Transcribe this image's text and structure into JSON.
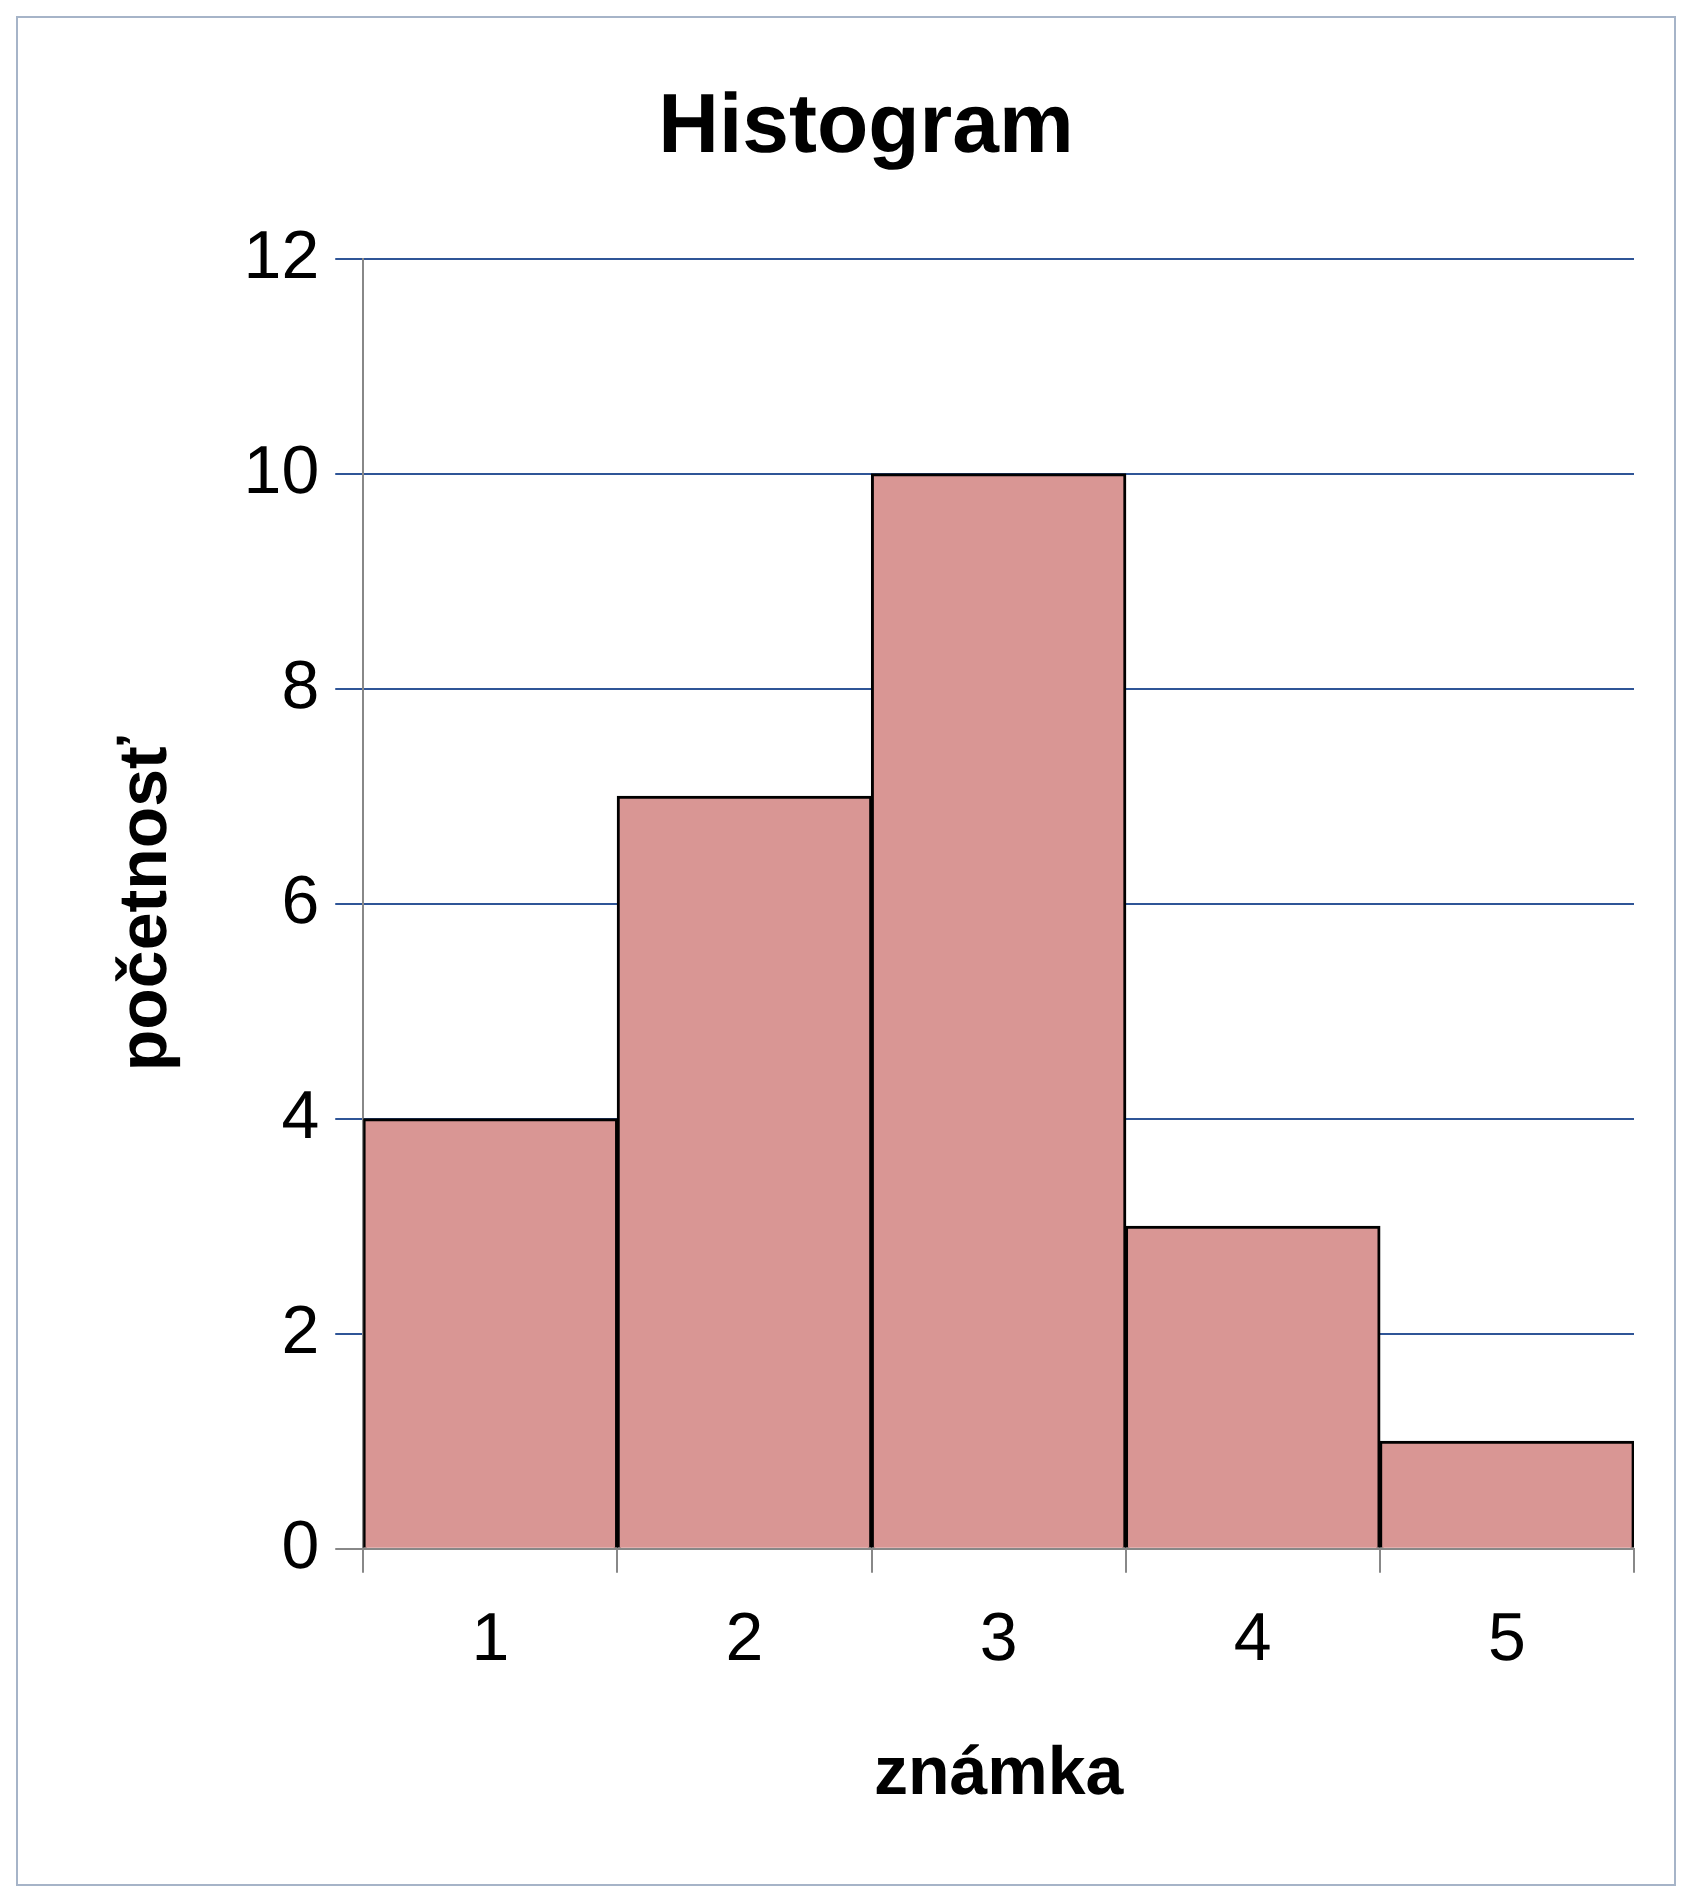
{
  "chart_data": {
    "type": "bar",
    "title": "Histogram",
    "xlabel": "známka",
    "ylabel": "početnosť",
    "categories": [
      "1",
      "2",
      "3",
      "4",
      "5"
    ],
    "values": [
      4,
      7,
      10,
      3,
      1
    ],
    "color": "#d99694",
    "ylim": [
      0,
      12
    ],
    "yticks": [
      0,
      2,
      4,
      6,
      8,
      10,
      12
    ],
    "grid": "y",
    "legend": false
  }
}
